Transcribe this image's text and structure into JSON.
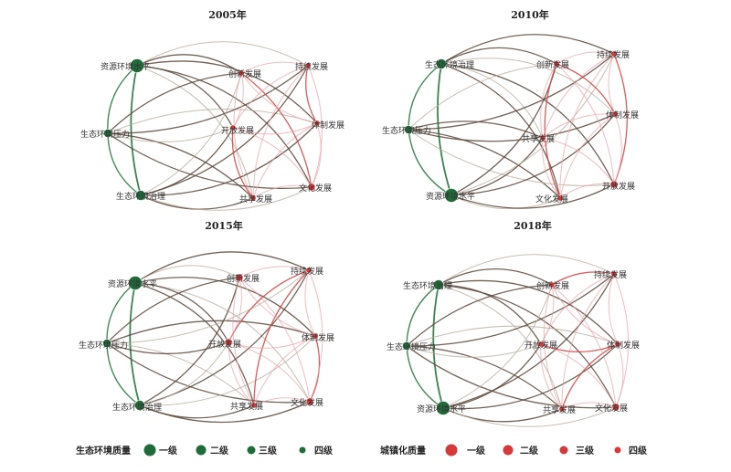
{
  "colors": {
    "green_dark": "#1f6b3a",
    "green_edge": "#2e7d46",
    "brown_edge": "#5a4638",
    "beige_edge": "#b5a898",
    "pink_edge": "#e8a3a6",
    "red_edge": "#d84b4b",
    "red_node": "#d6393a"
  },
  "panels": [
    {
      "title": "2005年",
      "nodes": [
        {
          "label": "资源环境水平",
          "group": "green",
          "level": 1
        },
        {
          "label": "生态环境压力",
          "group": "green",
          "level": 3
        },
        {
          "label": "生态环境治理",
          "group": "green",
          "level": 2
        },
        {
          "label": "共享发展",
          "group": "red",
          "level": 4
        },
        {
          "label": "文化发展",
          "group": "red",
          "level": 3
        },
        {
          "label": "体制发展",
          "group": "red",
          "level": 4
        },
        {
          "label": "持续发展",
          "group": "red",
          "level": 4
        },
        {
          "label": "创新发展",
          "group": "red",
          "level": 4
        },
        {
          "label": "开放发展",
          "group": "red",
          "level": 4
        }
      ]
    },
    {
      "title": "2010年",
      "nodes": [
        {
          "label": "生态环境治理",
          "group": "green",
          "level": 2
        },
        {
          "label": "生态环境压力",
          "group": "green",
          "level": 3
        },
        {
          "label": "资源环境水平",
          "group": "green",
          "level": 1
        },
        {
          "label": "文化发展",
          "group": "red",
          "level": 4
        },
        {
          "label": "开放发展",
          "group": "red",
          "level": 3
        },
        {
          "label": "共享发展",
          "group": "red",
          "level": 4
        },
        {
          "label": "持续发展",
          "group": "red",
          "level": 4
        },
        {
          "label": "创新发展",
          "group": "red",
          "level": 4
        },
        {
          "label": "体制发展",
          "group": "red",
          "level": 4
        }
      ]
    },
    {
      "title": "2015年",
      "nodes": [
        {
          "label": "资源环境水平",
          "group": "green",
          "level": 1
        },
        {
          "label": "生态环境压力",
          "group": "green",
          "level": 3
        },
        {
          "label": "生态环境治理",
          "group": "green",
          "level": 2
        },
        {
          "label": "共享发展",
          "group": "red",
          "level": 4
        },
        {
          "label": "文化发展",
          "group": "red",
          "level": 3
        },
        {
          "label": "体制发展",
          "group": "red",
          "level": 4
        },
        {
          "label": "持续发展",
          "group": "red",
          "level": 4
        },
        {
          "label": "创新发展",
          "group": "red",
          "level": 3
        },
        {
          "label": "开放发展",
          "group": "red",
          "level": 3
        }
      ]
    },
    {
      "title": "2018年",
      "nodes": [
        {
          "label": "生态环境治理",
          "group": "green",
          "level": 2
        },
        {
          "label": "生态环境压力",
          "group": "green",
          "level": 3
        },
        {
          "label": "资源环境水平",
          "group": "green",
          "level": 1
        },
        {
          "label": "共享发展",
          "group": "red",
          "level": 4
        },
        {
          "label": "文化发展",
          "group": "red",
          "level": 3
        },
        {
          "label": "体制发展",
          "group": "red",
          "level": 4
        },
        {
          "label": "持续发展",
          "group": "red",
          "level": 4
        },
        {
          "label": "创新发展",
          "group": "red",
          "level": 4
        },
        {
          "label": "开放发展",
          "group": "red",
          "level": 4
        }
      ]
    }
  ],
  "legend": {
    "green_title": "生态环境质量",
    "red_title": "城镇化质量",
    "levels": [
      "一级",
      "二级",
      "三级",
      "四级"
    ]
  }
}
